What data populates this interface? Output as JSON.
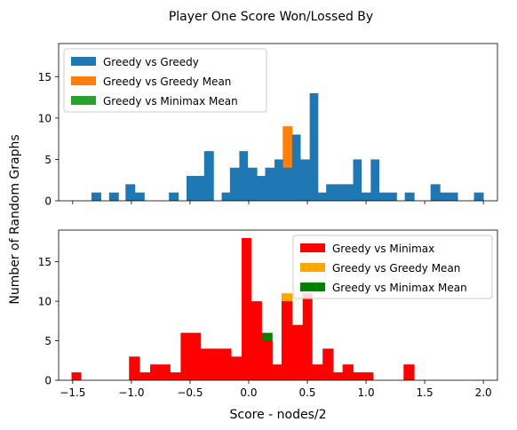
{
  "title": "Player One Score Won/Lossed By",
  "xlabel": "Score - nodes/2",
  "ylabel": "Number of Random Graphs",
  "x_ticks": [
    "−1.5",
    "−1.0",
    "−0.5",
    "0.0",
    "0.5",
    "1.0",
    "1.5",
    "2.0"
  ],
  "y_ticks": [
    "0",
    "5",
    "10",
    "15"
  ],
  "colors": {
    "blue": "#1f77b4",
    "orange": "#ff7f0e",
    "green_top": "#2ca02c",
    "red": "#ff0000",
    "orange_bottom": "#ffa500",
    "green_bottom": "#008000"
  },
  "chart_data": [
    {
      "type": "bar",
      "subtype": "histogram",
      "xlim": [
        -1.62,
        2.12
      ],
      "ylim": [
        0,
        19
      ],
      "legend_position": "upper-left",
      "series": [
        {
          "name": "Greedy vs Greedy",
          "color": "#1f77b4",
          "bars": [
            {
              "x0": -1.34,
              "x1": -1.26,
              "count": 1
            },
            {
              "x0": -1.19,
              "x1": -1.11,
              "count": 1
            },
            {
              "x0": -1.05,
              "x1": -0.97,
              "count": 2
            },
            {
              "x0": -0.97,
              "x1": -0.89,
              "count": 1
            },
            {
              "x0": -0.68,
              "x1": -0.6,
              "count": 1
            },
            {
              "x0": -0.53,
              "x1": -0.45,
              "count": 3
            },
            {
              "x0": -0.45,
              "x1": -0.38,
              "count": 3
            },
            {
              "x0": -0.38,
              "x1": -0.3,
              "count": 6
            },
            {
              "x0": -0.23,
              "x1": -0.16,
              "count": 1
            },
            {
              "x0": -0.16,
              "x1": -0.08,
              "count": 4
            },
            {
              "x0": -0.08,
              "x1": -0.01,
              "count": 6
            },
            {
              "x0": -0.01,
              "x1": 0.07,
              "count": 4
            },
            {
              "x0": 0.07,
              "x1": 0.14,
              "count": 3
            },
            {
              "x0": 0.14,
              "x1": 0.22,
              "count": 4
            },
            {
              "x0": 0.22,
              "x1": 0.29,
              "count": 5
            },
            {
              "x0": 0.29,
              "x1": 0.37,
              "count": 4
            },
            {
              "x0": 0.37,
              "x1": 0.44,
              "count": 8
            },
            {
              "x0": 0.44,
              "x1": 0.52,
              "count": 5
            },
            {
              "x0": 0.52,
              "x1": 0.59,
              "count": 13
            },
            {
              "x0": 0.59,
              "x1": 0.66,
              "count": 1
            },
            {
              "x0": 0.66,
              "x1": 0.74,
              "count": 2
            },
            {
              "x0": 0.74,
              "x1": 0.81,
              "count": 2
            },
            {
              "x0": 0.81,
              "x1": 0.89,
              "count": 2
            },
            {
              "x0": 0.89,
              "x1": 0.96,
              "count": 5
            },
            {
              "x0": 0.96,
              "x1": 1.04,
              "count": 1
            },
            {
              "x0": 1.04,
              "x1": 1.11,
              "count": 5
            },
            {
              "x0": 1.11,
              "x1": 1.18,
              "count": 1
            },
            {
              "x0": 1.18,
              "x1": 1.26,
              "count": 1
            },
            {
              "x0": 1.33,
              "x1": 1.41,
              "count": 1
            },
            {
              "x0": 1.55,
              "x1": 1.63,
              "count": 2
            },
            {
              "x0": 1.63,
              "x1": 1.7,
              "count": 1
            },
            {
              "x0": 1.7,
              "x1": 1.78,
              "count": 1
            },
            {
              "x0": 1.92,
              "x1": 2.0,
              "count": 1
            }
          ]
        },
        {
          "name": "Greedy vs Greedy Mean",
          "color": "#ff7f0e",
          "bars": [
            {
              "x0": 0.29,
              "x1": 0.37,
              "count": 9
            }
          ]
        },
        {
          "name": "Greedy vs Minimax Mean",
          "color": "#2ca02c",
          "bars": [
            {
              "x0": -0.01,
              "x1": 0.07,
              "count": 3
            }
          ]
        }
      ]
    },
    {
      "type": "bar",
      "subtype": "histogram",
      "xlim": [
        -1.62,
        2.12
      ],
      "ylim": [
        0,
        19
      ],
      "legend_position": "upper-right",
      "series": [
        {
          "name": "Greedy vs Minimax",
          "color": "#ff0000",
          "bars": [
            {
              "x0": -1.51,
              "x1": -1.43,
              "count": 1
            },
            {
              "x0": -1.02,
              "x1": -0.93,
              "count": 3
            },
            {
              "x0": -0.93,
              "x1": -0.84,
              "count": 1
            },
            {
              "x0": -0.84,
              "x1": -0.76,
              "count": 2
            },
            {
              "x0": -0.76,
              "x1": -0.67,
              "count": 2
            },
            {
              "x0": -0.67,
              "x1": -0.58,
              "count": 1
            },
            {
              "x0": -0.58,
              "x1": -0.5,
              "count": 6
            },
            {
              "x0": -0.5,
              "x1": -0.41,
              "count": 6
            },
            {
              "x0": -0.41,
              "x1": -0.32,
              "count": 4
            },
            {
              "x0": -0.32,
              "x1": -0.24,
              "count": 4
            },
            {
              "x0": -0.24,
              "x1": -0.15,
              "count": 4
            },
            {
              "x0": -0.15,
              "x1": -0.06,
              "count": 3
            },
            {
              "x0": -0.06,
              "x1": 0.02,
              "count": 18
            },
            {
              "x0": 0.02,
              "x1": 0.11,
              "count": 10
            },
            {
              "x0": 0.11,
              "x1": 0.2,
              "count": 5
            },
            {
              "x0": 0.2,
              "x1": 0.28,
              "count": 2
            },
            {
              "x0": 0.28,
              "x1": 0.37,
              "count": 10
            },
            {
              "x0": 0.37,
              "x1": 0.46,
              "count": 7
            },
            {
              "x0": 0.46,
              "x1": 0.54,
              "count": 11
            },
            {
              "x0": 0.54,
              "x1": 0.63,
              "count": 2
            },
            {
              "x0": 0.63,
              "x1": 0.72,
              "count": 4
            },
            {
              "x0": 0.72,
              "x1": 0.8,
              "count": 1
            },
            {
              "x0": 0.8,
              "x1": 0.89,
              "count": 2
            },
            {
              "x0": 0.89,
              "x1": 0.98,
              "count": 1
            },
            {
              "x0": 0.98,
              "x1": 1.06,
              "count": 1
            },
            {
              "x0": 1.32,
              "x1": 1.41,
              "count": 2
            }
          ]
        },
        {
          "name": "Greedy vs Greedy Mean",
          "color": "#ffa500",
          "bars": [
            {
              "x0": 0.28,
              "x1": 0.37,
              "count": 11
            }
          ]
        },
        {
          "name": "Greedy vs Minimax Mean",
          "color": "#008000",
          "bars": [
            {
              "x0": 0.11,
              "x1": 0.2,
              "count": 6
            }
          ]
        }
      ]
    }
  ]
}
